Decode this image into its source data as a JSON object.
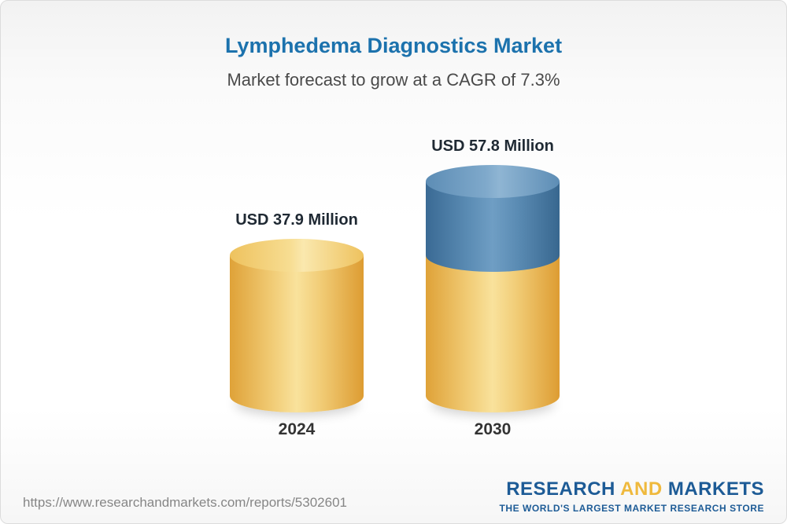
{
  "header": {
    "title": "Lymphedema Diagnostics Market",
    "subtitle": "Market forecast to grow at a CAGR of 7.3%"
  },
  "chart_data": {
    "type": "bar",
    "subtype": "3d-cylinder",
    "title": "Lymphedema Diagnostics Market",
    "subtitle": "Market forecast to grow at a CAGR of 7.3%",
    "cagr_percent": 7.3,
    "unit": "USD Million",
    "categories": [
      "2024",
      "2030"
    ],
    "values": [
      37.9,
      57.8
    ],
    "value_labels": [
      "USD 37.9 Million",
      "USD 57.8 Million"
    ],
    "notes": "2030 cylinder shows base value in gold with incremental growth segment in steel blue on top",
    "colors": {
      "base_segment": "#f2c45a",
      "growth_segment": "#4d7ea8",
      "title": "#1c72ad"
    },
    "legend": "none",
    "grid": "off"
  },
  "footer": {
    "url": "https://www.researchandmarkets.com/reports/5302601",
    "logo": {
      "word1": "RESEARCH",
      "word2": "AND",
      "word3": "MARKETS",
      "tagline": "THE WORLD'S LARGEST MARKET RESEARCH STORE"
    }
  }
}
